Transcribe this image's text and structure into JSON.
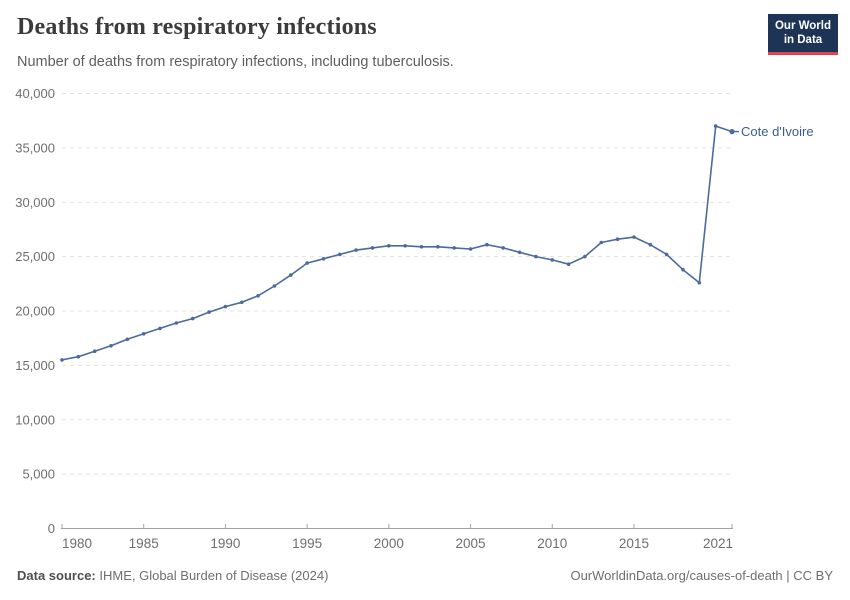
{
  "header": {
    "title": "Deaths from respiratory infections",
    "subtitle": "Number of deaths from respiratory infections, including tuberculosis."
  },
  "logo": {
    "line1": "Our World",
    "line2": "in Data",
    "bg_color": "#1d3456",
    "accent_color": "#e0434f"
  },
  "chart_data": {
    "type": "line",
    "title": "Deaths from respiratory infections",
    "subtitle": "Number of deaths from respiratory infections, including tuberculosis.",
    "entity": "Cote d'Ivoire",
    "x": [
      1980,
      1981,
      1982,
      1983,
      1984,
      1985,
      1986,
      1987,
      1988,
      1989,
      1990,
      1991,
      1992,
      1993,
      1994,
      1995,
      1996,
      1997,
      1998,
      1999,
      2000,
      2001,
      2002,
      2003,
      2004,
      2005,
      2006,
      2007,
      2008,
      2009,
      2010,
      2011,
      2012,
      2013,
      2014,
      2015,
      2016,
      2017,
      2018,
      2019,
      2020,
      2021
    ],
    "values": [
      15500,
      15800,
      16300,
      16800,
      17400,
      17900,
      18400,
      18900,
      19300,
      19900,
      20400,
      20800,
      21400,
      22300,
      23300,
      24400,
      24800,
      25200,
      25600,
      25800,
      26000,
      26000,
      25900,
      25900,
      25800,
      25700,
      26100,
      25800,
      25400,
      25000,
      24700,
      24300,
      25000,
      26300,
      26600,
      26800,
      26100,
      25200,
      23800,
      22600,
      37000,
      36500
    ],
    "x_tick_labels": [
      "1980",
      "1985",
      "1990",
      "1995",
      "2000",
      "2005",
      "2010",
      "2015",
      "2021"
    ],
    "x_ticks": [
      1980,
      1985,
      1990,
      1995,
      2000,
      2005,
      2010,
      2015,
      2021
    ],
    "y_ticks": [
      0,
      5000,
      10000,
      15000,
      20000,
      25000,
      30000,
      35000,
      40000
    ],
    "xlim": [
      1980,
      2021
    ],
    "ylim": [
      0,
      40000
    ],
    "grid": true,
    "legend_position": "end-of-line-label",
    "line_color": "#4c6a9c",
    "entity_label_color": "#3d5c8f",
    "grid_color": "#e1e1e1",
    "axis_color": "#a3a3a3",
    "tick_label_color": "#6e6e6e"
  },
  "footer": {
    "source_label": "Data source:",
    "source_text": " IHME, Global Burden of Disease (2024)",
    "credit": "OurWorldinData.org/causes-of-death | CC BY"
  }
}
